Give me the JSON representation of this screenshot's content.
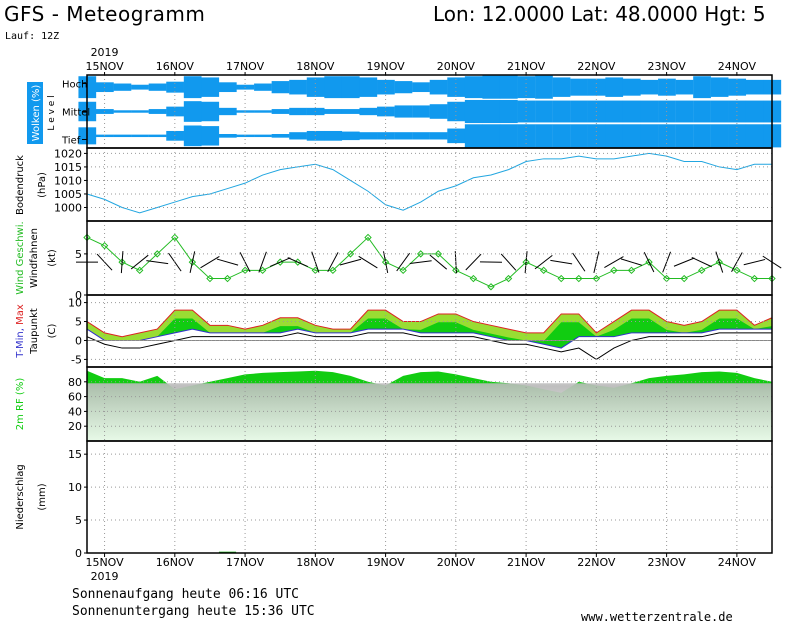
{
  "header": {
    "title": "GFS - Meteogramm",
    "location": "Lon: 12.0000 Lat: 48.0000 Hgt: 5",
    "run": "Lauf: 12Z"
  },
  "footer": {
    "sunrise": "Sonnenaufgang heute 06:16 UTC",
    "sunset": "Sonnenuntergang heute 15:36 UTC",
    "credit": "www.wetterzentrale.de"
  },
  "colors": {
    "cloud": "#1199ee",
    "pressure_line": "#22a6e0",
    "wind_line": "#22bb22",
    "tmin": "#3333cc",
    "tmax": "#dd2222",
    "temp_fill": "#11cc11",
    "temp_fill_light": "#99dd33",
    "rh_fill": "#11cc11",
    "precip": "#11aa11"
  },
  "chart_data": {
    "type": "meteogram",
    "year": "2019",
    "days": [
      "15NOV",
      "16NOV",
      "17NOV",
      "18NOV",
      "19NOV",
      "20NOV",
      "21NOV",
      "22NOV",
      "23NOV",
      "24NOV"
    ],
    "x_start": "2019-11-14T18:00Z",
    "x_end": "2019-11-24T12:00Z",
    "step_hours": 6,
    "panels": [
      {
        "id": "clouds",
        "ylabel": "Wolken (%)",
        "level_label": "L e v e l",
        "levels": [
          "Hoch",
          "Mittel",
          "Tief"
        ],
        "series": [
          {
            "name": "Hoch",
            "values": [
              90,
              40,
              30,
              20,
              30,
              45,
              90,
              80,
              40,
              20,
              30,
              50,
              60,
              80,
              90,
              90,
              80,
              60,
              50,
              40,
              60,
              80,
              90,
              95,
              95,
              90,
              95,
              80,
              70,
              70,
              80,
              70,
              60,
              70,
              60,
              90,
              80,
              70,
              60,
              60
            ]
          },
          {
            "name": "Mittel",
            "values": [
              80,
              20,
              10,
              10,
              20,
              40,
              85,
              80,
              30,
              10,
              10,
              20,
              30,
              30,
              20,
              20,
              30,
              40,
              50,
              50,
              60,
              80,
              95,
              95,
              95,
              90,
              90,
              90,
              90,
              90,
              90,
              90,
              90,
              90,
              90,
              90,
              90,
              90,
              90,
              90
            ]
          },
          {
            "name": "Tief",
            "values": [
              70,
              10,
              10,
              10,
              10,
              40,
              85,
              80,
              15,
              10,
              10,
              15,
              30,
              40,
              40,
              35,
              30,
              30,
              30,
              30,
              30,
              60,
              95,
              95,
              95,
              95,
              95,
              95,
              95,
              95,
              95,
              95,
              95,
              95,
              95,
              95,
              95,
              95,
              95,
              95
            ]
          }
        ]
      },
      {
        "id": "pressure",
        "ylabel": "Bodendruck",
        "unit": "(hPa)",
        "ylim": [
          995,
          1022
        ],
        "ticks": [
          1000,
          1005,
          1010,
          1015,
          1020
        ],
        "series": [
          {
            "name": "",
            "values": [
              1005,
              1003,
              1000,
              998,
              1000,
              1002,
              1004,
              1005,
              1007,
              1009,
              1012,
              1014,
              1015,
              1016,
              1014,
              1010,
              1006,
              1001,
              999,
              1002,
              1006,
              1008,
              1011,
              1012,
              1014,
              1017,
              1018,
              1018,
              1019,
              1018,
              1018,
              1019,
              1020,
              1019,
              1017,
              1017,
              1015,
              1014,
              1016,
              1016
            ]
          }
        ]
      },
      {
        "id": "wind",
        "ylabel": "Wind Geschwi.",
        "sublabel": "Windfahnen",
        "unit": "(kt)",
        "ylim": [
          0,
          9
        ],
        "ticks": [
          0,
          5
        ],
        "series": [
          {
            "name": "",
            "values": [
              7,
              6,
              4,
              3,
              5,
              7,
              4,
              2,
              2,
              3,
              3,
              4,
              4,
              3,
              3,
              5,
              7,
              4,
              3,
              5,
              5,
              3,
              2,
              1,
              2,
              4,
              3,
              2,
              2,
              2,
              3,
              3,
              4,
              2,
              2,
              3,
              4,
              3,
              2,
              2
            ]
          }
        ]
      },
      {
        "id": "temperature",
        "ylabel": "T-Min, Max",
        "sublabel": "Taupunkt",
        "unit": "(C)",
        "ylim": [
          -7,
          12
        ],
        "ticks": [
          -5,
          0,
          5,
          10
        ],
        "tmax": [
          5,
          2,
          1,
          2,
          3,
          8,
          8,
          4,
          4,
          3,
          4,
          6,
          6,
          4,
          3,
          3,
          8,
          8,
          5,
          5,
          7,
          7,
          5,
          4,
          3,
          2,
          2,
          7,
          7,
          2,
          5,
          8,
          8,
          5,
          4,
          5,
          8,
          8,
          4,
          6
        ],
        "tmin": [
          3,
          0,
          0,
          0,
          1,
          2,
          3,
          2,
          2,
          2,
          2,
          2,
          3,
          2,
          2,
          2,
          3,
          3,
          3,
          2,
          2,
          2,
          2,
          1,
          0,
          0,
          -1,
          -2,
          1,
          1,
          1,
          2,
          2,
          2,
          2,
          2,
          3,
          3,
          3,
          3
        ],
        "dewpoint": [
          1,
          -1,
          -2,
          -2,
          -1,
          0,
          1,
          1,
          1,
          1,
          1,
          1,
          2,
          1,
          1,
          1,
          2,
          2,
          2,
          1,
          1,
          1,
          1,
          0,
          -1,
          -1,
          -2,
          -3,
          -2,
          -5,
          -2,
          0,
          1,
          1,
          1,
          1,
          2,
          2,
          2,
          2
        ]
      },
      {
        "id": "rh",
        "ylabel": "2m RF (%)",
        "ylim": [
          0,
          100
        ],
        "ticks": [
          20,
          40,
          60,
          80
        ],
        "series": [
          {
            "name": "",
            "values": [
              95,
              85,
              85,
              80,
              88,
              70,
              75,
              80,
              85,
              90,
              92,
              93,
              94,
              95,
              93,
              88,
              80,
              75,
              88,
              93,
              94,
              90,
              85,
              80,
              78,
              75,
              70,
              65,
              80,
              75,
              72,
              78,
              85,
              88,
              90,
              93,
              94,
              92,
              85,
              80
            ]
          }
        ]
      },
      {
        "id": "precip",
        "ylabel": "Niederschlag",
        "unit": "(mm)",
        "ylim": [
          0,
          17
        ],
        "ticks": [
          0,
          5,
          10,
          15
        ],
        "series": [
          {
            "name": "",
            "values": [
              0,
              0,
              0,
              0,
              0,
              0,
              0,
              0,
              0.2,
              0,
              0,
              0,
              0,
              0,
              0,
              0,
              0,
              0,
              0,
              0,
              0,
              0,
              0,
              0,
              0,
              0,
              0,
              0,
              0,
              0,
              0,
              0,
              0,
              0,
              0,
              0,
              0,
              0,
              0,
              0
            ]
          }
        ]
      }
    ]
  }
}
